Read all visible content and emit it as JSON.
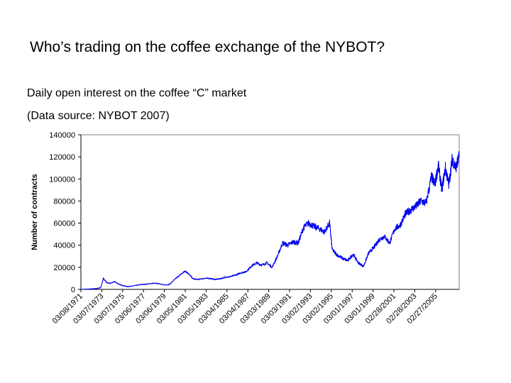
{
  "slide": {
    "title": "Who’s trading on the coffee exchange of the NYBOT?",
    "subtitle1": "Daily open interest on the coffee “C” market",
    "subtitle2": "(Data source: NYBOT 2007)"
  },
  "chart_data": {
    "type": "line",
    "title": "",
    "xlabel": "",
    "ylabel": "Number of contracts",
    "ylim": [
      0,
      140000
    ],
    "yticks": [
      0,
      20000,
      40000,
      60000,
      80000,
      100000,
      120000,
      140000
    ],
    "xlim": [
      "03/08/1971",
      "05/31/2007"
    ],
    "xticks": [
      "03/08/1971",
      "03/07/1973",
      "03/07/1975",
      "03/06/1977",
      "03/06/1979",
      "03/05/1981",
      "03/05/1983",
      "03/04/1985",
      "03/04/1987",
      "03/03/1989",
      "03/03/1991",
      "03/02/1993",
      "03/02/1995",
      "03/01/1997",
      "03/01/1999",
      "02/28/2001",
      "02/28/2003",
      "02/27/2005"
    ],
    "grid": false,
    "color": "#0000ee",
    "series": [
      {
        "name": "",
        "points": [
          [
            "03/08/1971",
            0
          ],
          [
            "03/01/1972",
            300
          ],
          [
            "09/01/1972",
            800
          ],
          [
            "02/01/1973",
            1500
          ],
          [
            "05/01/1973",
            10000
          ],
          [
            "09/01/1973",
            6000
          ],
          [
            "01/01/1974",
            5500
          ],
          [
            "06/01/1974",
            7000
          ],
          [
            "10/01/1974",
            5000
          ],
          [
            "03/01/1975",
            3500
          ],
          [
            "09/01/1975",
            2500
          ],
          [
            "03/01/1976",
            3000
          ],
          [
            "09/01/1976",
            4000
          ],
          [
            "03/01/1977",
            4500
          ],
          [
            "09/01/1977",
            5000
          ],
          [
            "03/01/1978",
            5500
          ],
          [
            "09/01/1978",
            5200
          ],
          [
            "03/01/1979",
            4000
          ],
          [
            "09/01/1979",
            4500
          ],
          [
            "03/01/1980",
            9000
          ],
          [
            "09/01/1980",
            13000
          ],
          [
            "03/01/1981",
            16500
          ],
          [
            "06/01/1981",
            15000
          ],
          [
            "12/01/1981",
            9500
          ],
          [
            "06/01/1982",
            9000
          ],
          [
            "01/01/1983",
            10000
          ],
          [
            "07/01/1983",
            10000
          ],
          [
            "01/01/1984",
            9000
          ],
          [
            "07/01/1984",
            9500
          ],
          [
            "01/01/1985",
            11000
          ],
          [
            "07/01/1985",
            11500
          ],
          [
            "01/01/1986",
            13000
          ],
          [
            "07/01/1986",
            15000
          ],
          [
            "01/01/1987",
            16000
          ],
          [
            "07/01/1987",
            21000
          ],
          [
            "01/01/1988",
            24000
          ],
          [
            "07/01/1988",
            22000
          ],
          [
            "01/01/1989",
            24000
          ],
          [
            "07/01/1989",
            20000
          ],
          [
            "01/01/1990",
            30000
          ],
          [
            "07/01/1990",
            42000
          ],
          [
            "01/01/1991",
            40000
          ],
          [
            "07/01/1991",
            43000
          ],
          [
            "01/01/1992",
            42000
          ],
          [
            "07/01/1992",
            56000
          ],
          [
            "01/01/1993",
            60000
          ],
          [
            "07/01/1993",
            57000
          ],
          [
            "01/01/1994",
            55000
          ],
          [
            "07/01/1994",
            52000
          ],
          [
            "01/01/1995",
            60000
          ],
          [
            "04/01/1995",
            36000
          ],
          [
            "10/01/1995",
            31000
          ],
          [
            "04/01/1996",
            28000
          ],
          [
            "10/01/1996",
            26000
          ],
          [
            "04/01/1997",
            32000
          ],
          [
            "10/01/1997",
            24000
          ],
          [
            "04/01/1998",
            21000
          ],
          [
            "10/01/1998",
            33000
          ],
          [
            "04/01/1999",
            38000
          ],
          [
            "10/01/1999",
            45000
          ],
          [
            "04/01/2000",
            48000
          ],
          [
            "10/01/2000",
            42000
          ],
          [
            "04/01/2001",
            55000
          ],
          [
            "10/01/2001",
            58000
          ],
          [
            "04/01/2002",
            68000
          ],
          [
            "10/01/2002",
            72000
          ],
          [
            "04/01/2003",
            75000
          ],
          [
            "10/01/2003",
            80000
          ],
          [
            "04/01/2004",
            78000
          ],
          [
            "10/01/2004",
            102000
          ],
          [
            "02/01/2005",
            95000
          ],
          [
            "06/01/2005",
            112000
          ],
          [
            "10/01/2005",
            90000
          ],
          [
            "02/01/2006",
            110000
          ],
          [
            "06/01/2006",
            95000
          ],
          [
            "10/01/2006",
            118000
          ],
          [
            "02/01/2007",
            110000
          ],
          [
            "05/31/2007",
            120000
          ]
        ]
      }
    ]
  }
}
